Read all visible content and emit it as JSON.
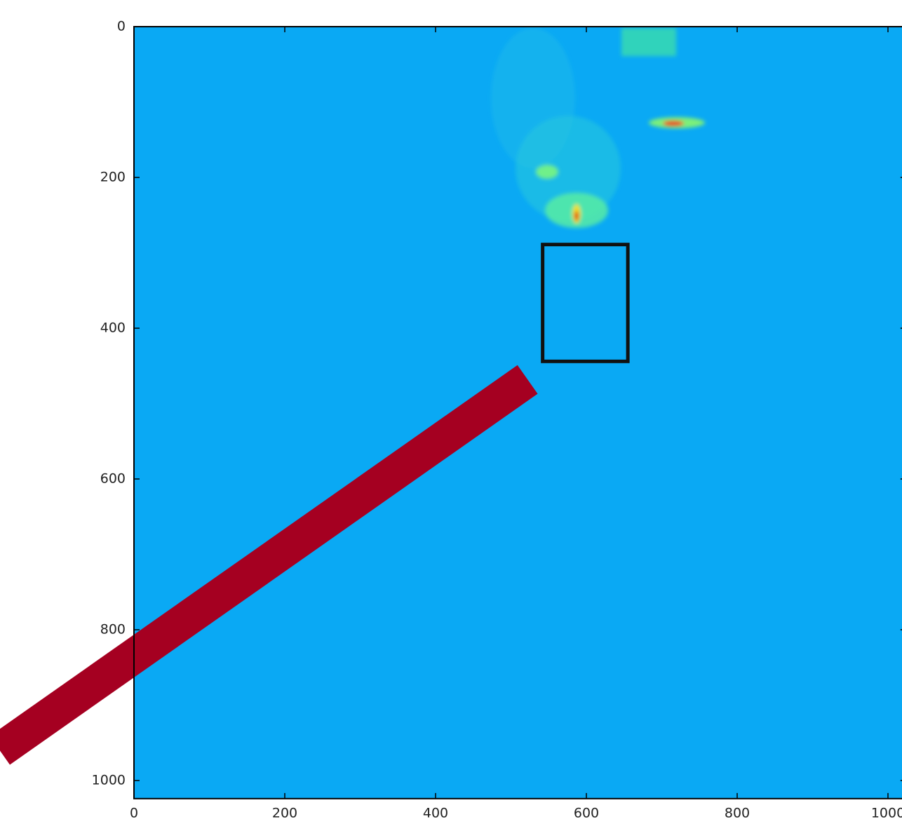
{
  "chart_data": {
    "type": "heatmap",
    "xlim": [
      0,
      1024
    ],
    "ylim": [
      1024,
      0
    ],
    "xticks": [
      0,
      200,
      400,
      600,
      800,
      1000
    ],
    "yticks": [
      0,
      200,
      400,
      600,
      800,
      1000
    ],
    "background_color": "#0aa9f4",
    "rectangle": {
      "x": 542,
      "y": 289,
      "width": 113,
      "height": 155,
      "color": "#111111"
    },
    "line": {
      "x": [
        -178,
        522
      ],
      "y": [
        960,
        468
      ],
      "color": "#a50021"
    }
  }
}
